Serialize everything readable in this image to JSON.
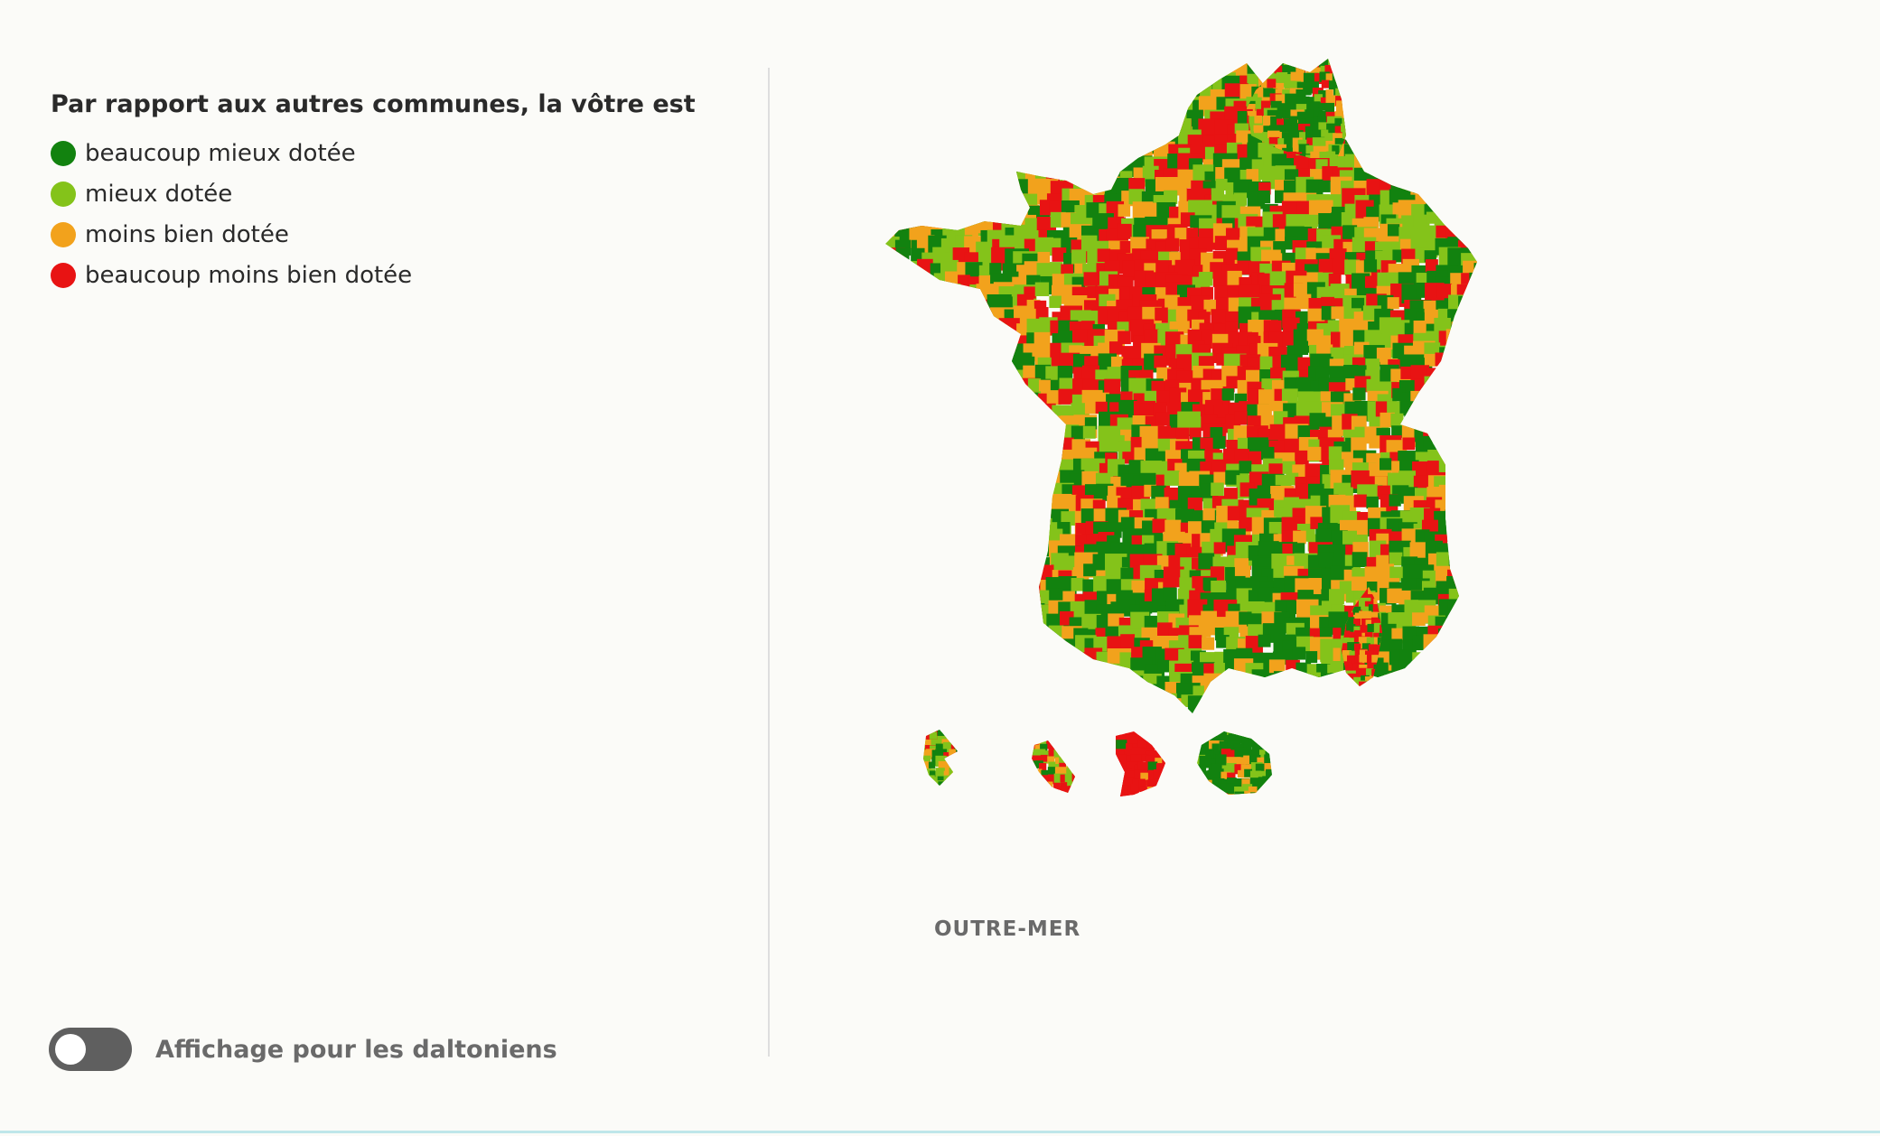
{
  "legend": {
    "title": "Par rapport aux autres communes, la vôtre est",
    "items": [
      {
        "label": "beaucoup mieux dotée",
        "color": "#12820f"
      },
      {
        "label": "mieux dotée",
        "color": "#84c31a"
      },
      {
        "label": "moins bien dotée",
        "color": "#f2a21c"
      },
      {
        "label": "beaucoup moins bien dotée",
        "color": "#e81313"
      }
    ]
  },
  "toggle": {
    "label": "Affichage pour les daltoniens",
    "state": "off"
  },
  "outre_mer": {
    "title": "OUTRE-MER"
  },
  "map": {
    "palette": [
      "#12820f",
      "#84c31a",
      "#f2a21c",
      "#e81313"
    ]
  }
}
